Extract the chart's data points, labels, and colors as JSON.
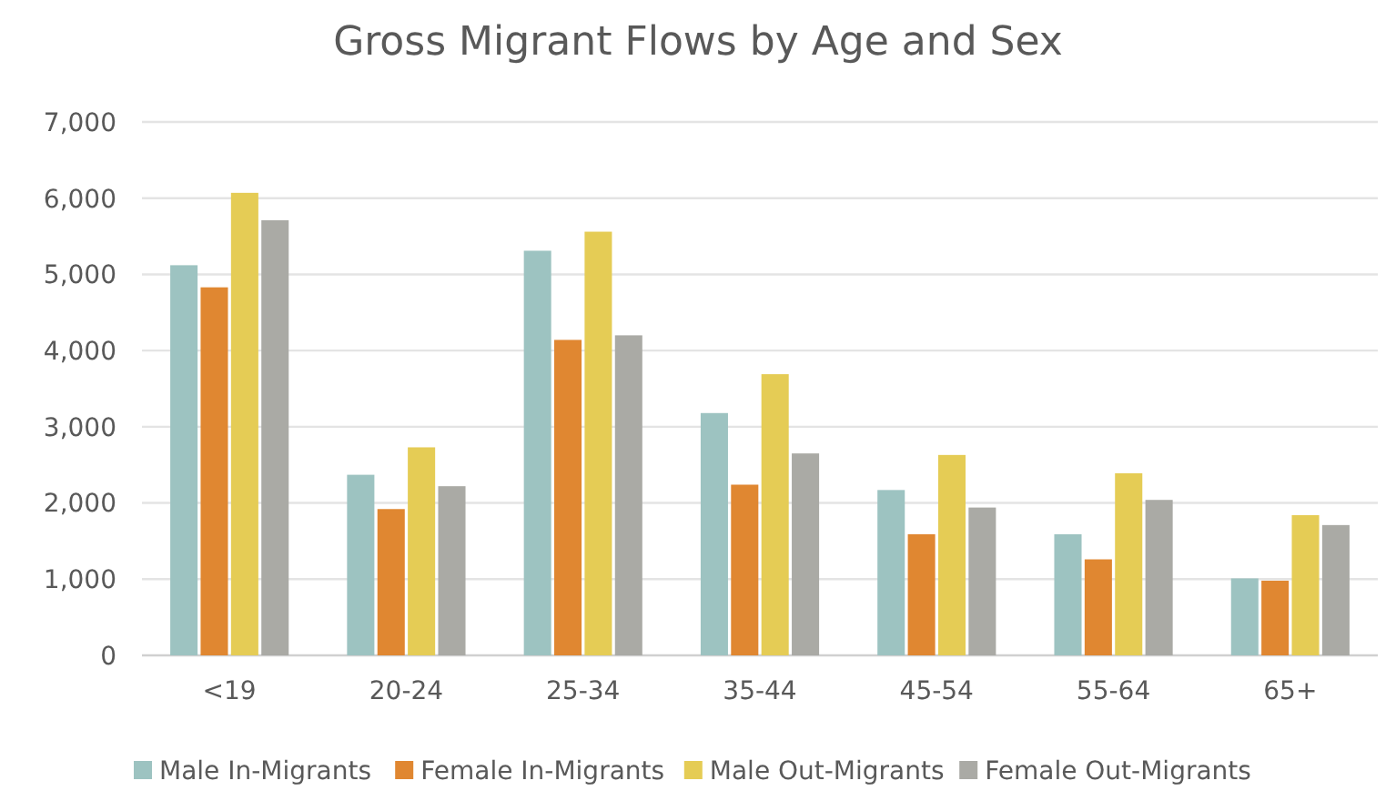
{
  "chart_data": {
    "type": "bar",
    "title": "Gross Migrant Flows by Age and Sex",
    "categories": [
      "<19",
      "20-24",
      "25-34",
      "35-44",
      "45-54",
      "55-64",
      "65+"
    ],
    "series": [
      {
        "name": "Male In-Migrants",
        "color": "#9dc3c1",
        "values": [
          5120,
          2370,
          5310,
          3180,
          2170,
          1590,
          1010
        ]
      },
      {
        "name": "Female In-Migrants",
        "color": "#e08731",
        "values": [
          4830,
          1920,
          4140,
          2240,
          1590,
          1260,
          980
        ]
      },
      {
        "name": "Male Out-Migrants",
        "color": "#e5cc55",
        "values": [
          6070,
          2730,
          5560,
          3690,
          2630,
          2390,
          1840
        ]
      },
      {
        "name": "Female Out-Migrants",
        "color": "#aaaaa5",
        "values": [
          5710,
          2220,
          4200,
          2650,
          1940,
          2040,
          1710
        ]
      }
    ],
    "ylim": [
      0,
      7000
    ],
    "yticks": [
      {
        "value": 0,
        "label": "0"
      },
      {
        "value": 1000,
        "label": "1,000"
      },
      {
        "value": 2000,
        "label": "2,000"
      },
      {
        "value": 3000,
        "label": "3,000"
      },
      {
        "value": 4000,
        "label": "4,000"
      },
      {
        "value": 5000,
        "label": "5,000"
      },
      {
        "value": 6000,
        "label": "6,000"
      },
      {
        "value": 7000,
        "label": "7,000"
      }
    ],
    "grid": "y",
    "legend": "bottom"
  }
}
